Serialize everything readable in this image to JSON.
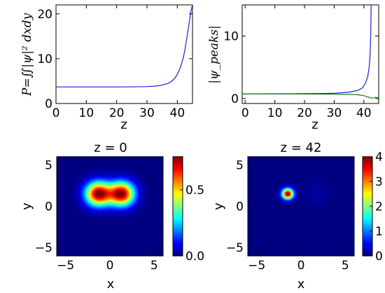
{
  "chart_data": [
    {
      "id": "power",
      "type": "line",
      "xlabel": "z",
      "ylabel": "P=∬|ψ|² dxdy",
      "xlim": [
        0,
        45
      ],
      "ylim": [
        0,
        22
      ],
      "xticks": [
        "0",
        "10",
        "20",
        "30",
        "40"
      ],
      "xtick_values": [
        0,
        10,
        20,
        30,
        40
      ],
      "yticks": [
        "0",
        "10",
        "20"
      ],
      "ytick_values": [
        0,
        10,
        20
      ],
      "series": [
        {
          "color": "#1f1fd6",
          "x": [
            0,
            5,
            10,
            15,
            20,
            25,
            30,
            33,
            35,
            37,
            38,
            39,
            40,
            41,
            42,
            42.5,
            43,
            43.5,
            44,
            44.5,
            45
          ],
          "y": [
            3.7,
            3.7,
            3.7,
            3.7,
            3.7,
            3.72,
            3.78,
            3.9,
            4.1,
            4.5,
            4.9,
            5.5,
            6.5,
            8.0,
            10.3,
            12.0,
            14.0,
            16.2,
            18.4,
            20.6,
            22.0
          ]
        }
      ]
    },
    {
      "id": "peaks",
      "type": "line",
      "xlabel": "z",
      "ylabel": "|ψ_peaks|",
      "xlim": [
        -1,
        45
      ],
      "ylim": [
        -0.8,
        15
      ],
      "xticks": [
        "0",
        "10",
        "20",
        "30",
        "40"
      ],
      "xtick_values": [
        0,
        10,
        20,
        30,
        40
      ],
      "yticks": [
        "0",
        "10"
      ],
      "ytick_values": [
        0,
        10
      ],
      "series": [
        {
          "color": "#1f1fd6",
          "x": [
            -1,
            5,
            10,
            15,
            20,
            25,
            30,
            35,
            38,
            39.5,
            40.5,
            41.3,
            41.8,
            42.1,
            42.3,
            42.45
          ],
          "y": [
            0.73,
            0.74,
            0.75,
            0.76,
            0.78,
            0.8,
            0.85,
            1.0,
            1.3,
            1.7,
            2.4,
            3.5,
            5.0,
            7.0,
            10.0,
            15.0
          ]
        },
        {
          "color": "#1a7a1a",
          "x": [
            -1,
            5,
            10,
            15,
            20,
            25,
            30,
            35,
            38,
            40,
            41,
            42,
            43,
            44,
            45
          ],
          "y": [
            0.72,
            0.72,
            0.72,
            0.72,
            0.72,
            0.71,
            0.7,
            0.66,
            0.6,
            0.45,
            0.3,
            0.15,
            0.05,
            0.2,
            0.05
          ]
        }
      ]
    },
    {
      "id": "map_z0",
      "type": "heatmap",
      "title": "z = 0",
      "xlabel": "x",
      "ylabel": "y",
      "xlim": [
        -6,
        6
      ],
      "ylim": [
        -6,
        6
      ],
      "xticks": [
        "−5",
        "0",
        "5"
      ],
      "xtick_values": [
        -5,
        0,
        5
      ],
      "yticks": [
        "5",
        "0",
        "−5"
      ],
      "ytick_values": [
        5,
        0,
        -5
      ],
      "colorbar_range": [
        0,
        0.75
      ],
      "colorbar_ticks": [
        "0.5",
        "0.0"
      ],
      "colorbar_tick_values": [
        0.5,
        0.0
      ],
      "colormap": "jet",
      "blobs": [
        {
          "x": -1.3,
          "y": 1.5,
          "amplitude": 0.75,
          "sigma": 1.0
        },
        {
          "x": 1.3,
          "y": 1.5,
          "amplitude": 0.75,
          "sigma": 1.0
        }
      ]
    },
    {
      "id": "map_z42",
      "type": "heatmap",
      "title": "z = 42",
      "xlabel": "x",
      "ylabel": "y",
      "xlim": [
        -6,
        6
      ],
      "ylim": [
        -6,
        6
      ],
      "xticks": [
        "−5",
        "0",
        "5"
      ],
      "xtick_values": [
        -5,
        0,
        5
      ],
      "yticks": [
        "5",
        "0",
        "−5"
      ],
      "ytick_values": [
        5,
        0,
        -5
      ],
      "colorbar_range": [
        0,
        4
      ],
      "colorbar_ticks": [
        "4",
        "3",
        "2",
        "1",
        "0"
      ],
      "colorbar_tick_values": [
        4,
        3,
        2,
        1,
        0
      ],
      "colormap": "jet",
      "blobs": [
        {
          "x": -1.5,
          "y": 1.5,
          "amplitude": 4.0,
          "sigma": 0.45
        },
        {
          "x": 1.8,
          "y": 1.5,
          "amplitude": 0.15,
          "sigma": 1.0
        }
      ]
    }
  ]
}
